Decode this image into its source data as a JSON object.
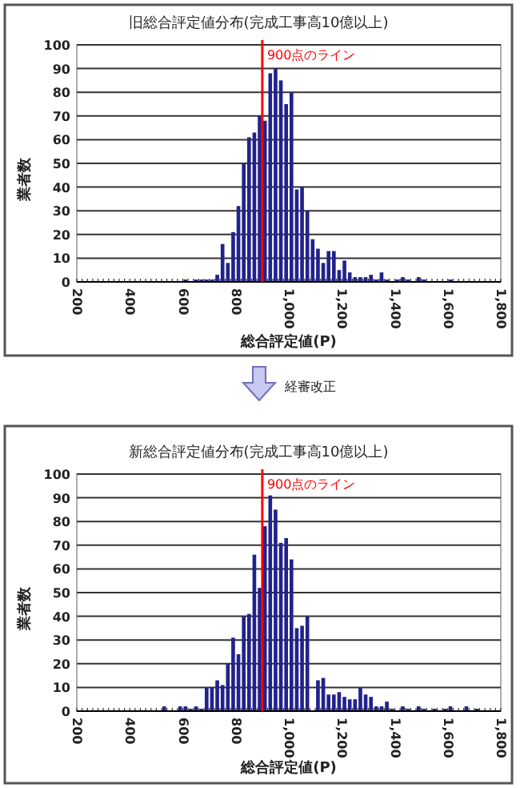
{
  "chart_data": [
    {
      "type": "histogram",
      "title": "旧総合評定値分布(完成工事高10億以上)",
      "xlabel": "総合評定値(P)",
      "ylabel": "業者数",
      "color": "#22228c",
      "bins": [
        200,
        220,
        240,
        260,
        280,
        300,
        320,
        340,
        360,
        380,
        400,
        420,
        440,
        460,
        480,
        500,
        520,
        540,
        560,
        580,
        600,
        620,
        640,
        660,
        680,
        700,
        720,
        740,
        760,
        780,
        800,
        820,
        840,
        860,
        880,
        900,
        920,
        940,
        960,
        980,
        1000,
        1020,
        1040,
        1060,
        1080,
        1100,
        1120,
        1140,
        1160,
        1180,
        1200,
        1220,
        1240,
        1260,
        1280,
        1300,
        1320,
        1340,
        1360,
        1380,
        1400,
        1420,
        1440,
        1460,
        1480,
        1500,
        1520,
        1540,
        1560,
        1580,
        1600,
        1620,
        1640,
        1660,
        1680,
        1700,
        1720,
        1740,
        1760,
        1780,
        1800
      ],
      "values": [
        0,
        0,
        0,
        0,
        0,
        0,
        0,
        0,
        0,
        0,
        0,
        0,
        0,
        0,
        0,
        0,
        0,
        0,
        0,
        0,
        1,
        0,
        1,
        1,
        1,
        1,
        3,
        16,
        8,
        21,
        32,
        50,
        61,
        63,
        70,
        68,
        88,
        90,
        85,
        75,
        80,
        39,
        40,
        30,
        18,
        14,
        8,
        13,
        13,
        5,
        9,
        4,
        2,
        2,
        2,
        3,
        1,
        4,
        1,
        0,
        1,
        2,
        1,
        0,
        2,
        1,
        0,
        0,
        0,
        0,
        1,
        0,
        0,
        0,
        0,
        0,
        0,
        0,
        0,
        0
      ],
      "xlim": [
        200,
        1800
      ],
      "xticks": [
        200,
        400,
        600,
        800,
        {
          "value": 1000,
          "label": "1,000"
        },
        {
          "value": 1200,
          "label": "1,200"
        },
        {
          "value": 1400,
          "label": "1,400"
        },
        {
          "value": 1600,
          "label": "1,600"
        },
        {
          "value": 1800,
          "label": "1,800"
        }
      ],
      "ylim": [
        0,
        100
      ],
      "yticks": [
        0,
        10,
        20,
        30,
        40,
        50,
        60,
        70,
        80,
        90,
        100
      ],
      "grid": "y",
      "ref_lines": [
        {
          "axis": "x",
          "value": 900,
          "label": "900点のライン",
          "color": "#ff0000"
        }
      ],
      "annotations": [
        "経審改正"
      ]
    },
    {
      "type": "histogram",
      "title": "新総合評定値分布(完成工事高10億以上)",
      "xlabel": "総合評定値(P)",
      "ylabel": "業者数",
      "color": "#22228c",
      "bins": [
        200,
        220,
        240,
        260,
        280,
        300,
        320,
        340,
        360,
        380,
        400,
        420,
        440,
        460,
        480,
        500,
        520,
        540,
        560,
        580,
        600,
        620,
        640,
        660,
        680,
        700,
        720,
        740,
        760,
        780,
        800,
        820,
        840,
        860,
        880,
        900,
        920,
        940,
        960,
        980,
        1000,
        1020,
        1040,
        1060,
        1080,
        1100,
        1120,
        1140,
        1160,
        1180,
        1200,
        1220,
        1240,
        1260,
        1280,
        1300,
        1320,
        1340,
        1360,
        1380,
        1400,
        1420,
        1440,
        1460,
        1480,
        1500,
        1520,
        1540,
        1560,
        1580,
        1600,
        1620,
        1640,
        1660,
        1680,
        1700,
        1720,
        1740,
        1760,
        1780,
        1800
      ],
      "values": [
        0,
        0,
        0,
        0,
        0,
        0,
        0,
        0,
        0,
        0,
        0,
        0,
        0,
        0,
        0,
        0,
        2,
        0,
        0,
        2,
        2,
        1,
        2,
        1,
        10,
        10,
        13,
        11,
        20,
        31,
        24,
        40,
        41,
        66,
        52,
        78,
        91,
        85,
        71,
        73,
        64,
        35,
        36,
        40,
        0,
        13,
        14,
        7,
        7,
        8,
        6,
        5,
        5,
        10,
        7,
        6,
        2,
        2,
        4,
        1,
        0,
        2,
        1,
        0,
        2,
        1,
        0,
        1,
        0,
        1,
        2,
        0,
        0,
        2,
        0,
        1,
        0,
        0,
        0,
        0
      ],
      "xlim": [
        200,
        1800
      ],
      "xticks": [
        200,
        400,
        600,
        800,
        {
          "value": 1000,
          "label": "1,000"
        },
        {
          "value": 1200,
          "label": "1,200"
        },
        {
          "value": 1400,
          "label": "1,400"
        },
        {
          "value": 1600,
          "label": "1,600"
        },
        {
          "value": 1800,
          "label": "1,800"
        }
      ],
      "ylim": [
        0,
        100
      ],
      "yticks": [
        0,
        10,
        20,
        30,
        40,
        50,
        60,
        70,
        80,
        90,
        100
      ],
      "grid": "y",
      "ref_lines": [
        {
          "axis": "x",
          "value": 900,
          "label": "900点のライン",
          "color": "#ff0000"
        }
      ]
    }
  ]
}
